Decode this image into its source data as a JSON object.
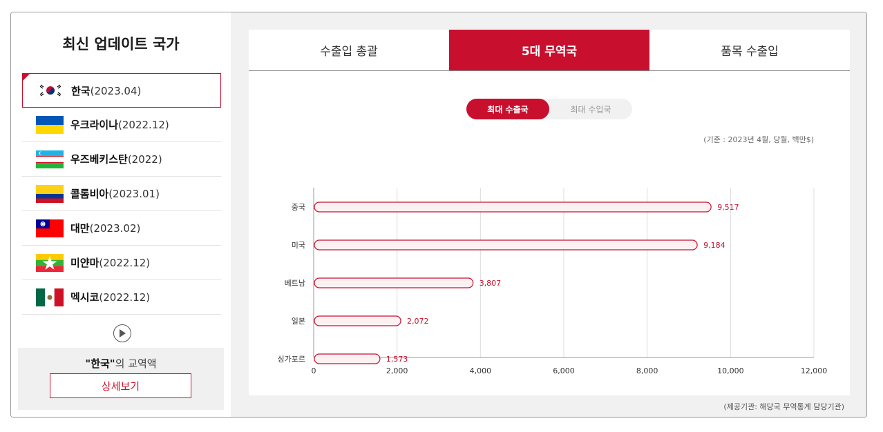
{
  "sidebar": {
    "title": "최신 업데이트 국가",
    "countries": [
      {
        "name": "한국",
        "period": "(2023.04)",
        "flag": "korea-flag-icon"
      },
      {
        "name": "우크라이나",
        "period": "(2022.12)",
        "flag": "ukraine-flag-icon"
      },
      {
        "name": "우즈베키스탄",
        "period": "(2022)",
        "flag": "uzbekistan-flag-icon"
      },
      {
        "name": "콜롬비아",
        "period": "(2023.01)",
        "flag": "colombia-flag-icon"
      },
      {
        "name": "대만",
        "period": "(2023.02)",
        "flag": "taiwan-flag-icon"
      },
      {
        "name": "미얀마",
        "period": "(2022.12)",
        "flag": "myanmar-flag-icon"
      },
      {
        "name": "멕시코",
        "period": "(2022.12)",
        "flag": "mexico-flag-icon"
      }
    ],
    "trade_country": "\"한국\"",
    "trade_suffix": "의 교역액",
    "detail_button": "상세보기"
  },
  "tabs": [
    {
      "label": "수출입 총괄",
      "active": false
    },
    {
      "label": "5대 무역국",
      "active": true
    },
    {
      "label": "품목 수출입",
      "active": false
    }
  ],
  "toggle": {
    "on_label": "최대 수출국",
    "off_label": "최대 수입국"
  },
  "note": "(기준 : 2023년 4월, 당월, 백만$)",
  "source": "(제공기관: 해당국 무역통계 담당기관)",
  "colors": {
    "accent": "#c8102e",
    "bar_fill": "#fdf0f2"
  },
  "chart_data": {
    "type": "bar",
    "orientation": "horizontal",
    "categories": [
      "중국",
      "미국",
      "베트남",
      "일본",
      "싱가포르"
    ],
    "values": [
      9517,
      9184,
      3807,
      2072,
      1573
    ],
    "value_labels": [
      "9,517",
      "9,184",
      "3,807",
      "2,072",
      "1,573"
    ],
    "xlim": [
      0,
      12000
    ],
    "xticks": [
      0,
      2000,
      4000,
      6000,
      8000,
      10000,
      12000
    ],
    "xtick_labels": [
      "0",
      "2,000",
      "4,000",
      "6,000",
      "8,000",
      "10,000",
      "12,000"
    ],
    "grid": true
  }
}
